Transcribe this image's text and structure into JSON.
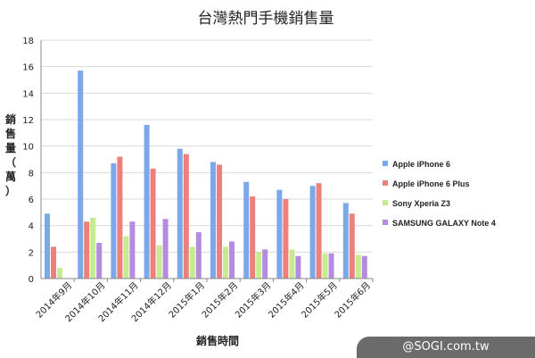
{
  "chart_data": {
    "type": "bar",
    "title": "台灣熱門手機銷售量",
    "xlabel": "銷售時間",
    "ylabel": "銷售量（萬）",
    "ylim": [
      0,
      18
    ],
    "yticks": [
      0,
      2,
      4,
      6,
      8,
      10,
      12,
      14,
      16,
      18
    ],
    "grid": true,
    "legend_position": "right",
    "categories": [
      "2014年9月",
      "2014年10月",
      "2014年11月",
      "2014年12月",
      "2015年1月",
      "2015年2月",
      "2015年3月",
      "2015年4月",
      "2015年5月",
      "2015年6月"
    ],
    "series": [
      {
        "name": "Apple iPhone 6",
        "color": "#7aa8e8",
        "values": [
          4.9,
          15.7,
          8.7,
          11.6,
          9.8,
          8.8,
          7.3,
          6.7,
          7.0,
          5.7
        ]
      },
      {
        "name": "Apple iPhone 6 Plus",
        "color": "#ee7f7a",
        "values": [
          2.4,
          4.3,
          9.2,
          8.3,
          9.4,
          8.6,
          6.2,
          6.0,
          7.2,
          4.9
        ]
      },
      {
        "name": "Sony Xperia Z3",
        "color": "#c6ec8f",
        "values": [
          0.8,
          4.6,
          3.2,
          2.5,
          2.4,
          2.4,
          2.0,
          2.2,
          1.9,
          1.8
        ]
      },
      {
        "name": "SAMSUNG GALAXY Note 4",
        "color": "#b48be0",
        "values": [
          0.0,
          2.7,
          4.3,
          4.5,
          3.5,
          2.8,
          2.2,
          1.7,
          1.9,
          1.7
        ]
      }
    ]
  },
  "watermark": "@SOGI.com.tw"
}
